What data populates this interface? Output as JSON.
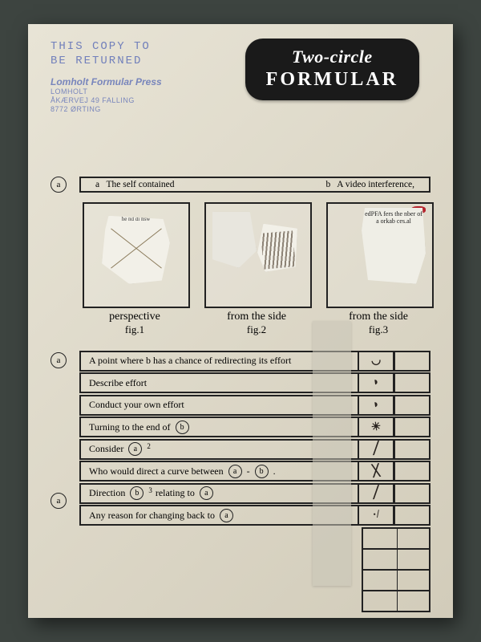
{
  "stamp": {
    "return_line1": "THIS COPY TO",
    "return_line2": "BE RETURNED",
    "press_main": "Lomholt Formular Press",
    "press_sub1": "LOMHOLT",
    "press_sub2": "ÅKÆRVEJ 49 FALLING",
    "press_sub3": "8772 ØRTING"
  },
  "title": {
    "line1": "Two-circle",
    "line2": "FORMULAR"
  },
  "heading": {
    "left": "a   The self contained",
    "right": "b   A video interference,"
  },
  "figures": {
    "f1": {
      "caption": "perspective",
      "sub": "fig.1"
    },
    "f2": {
      "caption": "from the side",
      "sub": "fig.2"
    },
    "f3": {
      "caption": "from the side",
      "sub": "fig.3",
      "torn_text": "edPFA fers the nber of a orkab ces.al"
    }
  },
  "rows": [
    {
      "text": "A point where  b  has a chance of redirecting its effort",
      "mark": "◡"
    },
    {
      "text": "Describe effort",
      "mark": "◗"
    },
    {
      "text": "Conduct your own effort",
      "mark": "◗"
    },
    {
      "text": "Turning to the end of",
      "circle": "b",
      "mark": "☀"
    },
    {
      "text": "Consider",
      "circle": "a",
      "sup": "2",
      "mark": "╱"
    },
    {
      "text": "Who would direct a curve between",
      "circle": "a",
      "dash": " - ",
      "circle2": "b",
      "tail": " .",
      "mark": "╳"
    },
    {
      "text": "Direction",
      "circle": "b",
      "sup": "3",
      "tail2": "  relating to",
      "circle2": "a",
      "mark": "╱"
    },
    {
      "text": "Any reason for changing back to",
      "circle": "a",
      "mark": "·/"
    }
  ],
  "bullet_label": "a"
}
